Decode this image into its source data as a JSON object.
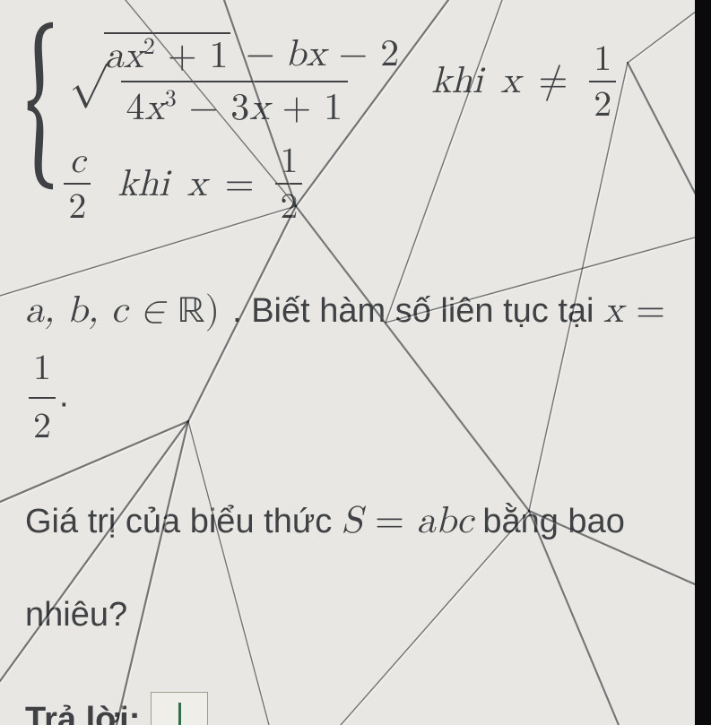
{
  "colors": {
    "page_bg": "#e8e7e3",
    "text": "#3f4144",
    "box_bg": "#efeee9",
    "box_border": "#9e9c93",
    "cursor": "#2f6f4a",
    "bezel": "#0a0a0c",
    "crack_dark": "rgba(20,22,26,0.55)",
    "crack_light": "rgba(255,255,255,0.35)"
  },
  "piecewise": {
    "case1": {
      "numerator_sqrt_inner_a": "a",
      "numerator_sqrt_inner_rest": "x",
      "numerator_sqrt_exp": "2",
      "numerator_sqrt_plus1": " + 1",
      "numerator_after_sqrt": " − bx − 2",
      "denominator": "4x",
      "denominator_exp": "3",
      "denominator_rest": " − 3x + 1",
      "khi": "khi",
      "cond_lhs": "x",
      "cond_op": "≠",
      "cond_rhs_num": "1",
      "cond_rhs_den": "2"
    },
    "case2": {
      "frac_num": "c",
      "frac_den": "2",
      "khi": "khi",
      "cond_lhs": "x",
      "cond_op": "=",
      "cond_rhs_num": "1",
      "cond_rhs_den": "2"
    }
  },
  "line2": {
    "prefix_math": "a, b, c ∈ ",
    "real_sym": "ℝ",
    "close_paren": ")",
    "text": ". Biết hàm số liên tục tại ",
    "eq_lhs": "x",
    "eq_op": " = ",
    "rhs_num": "1",
    "rhs_den": "2",
    "period": "."
  },
  "line3": {
    "text_before": "Giá trị của biểu thức ",
    "S": "S",
    "eq": " = ",
    "abc": "abc",
    "text_after": " bằng bao"
  },
  "line4": {
    "text": "nhiêu?"
  },
  "answer": {
    "label": "Trả lời:",
    "value": ""
  }
}
